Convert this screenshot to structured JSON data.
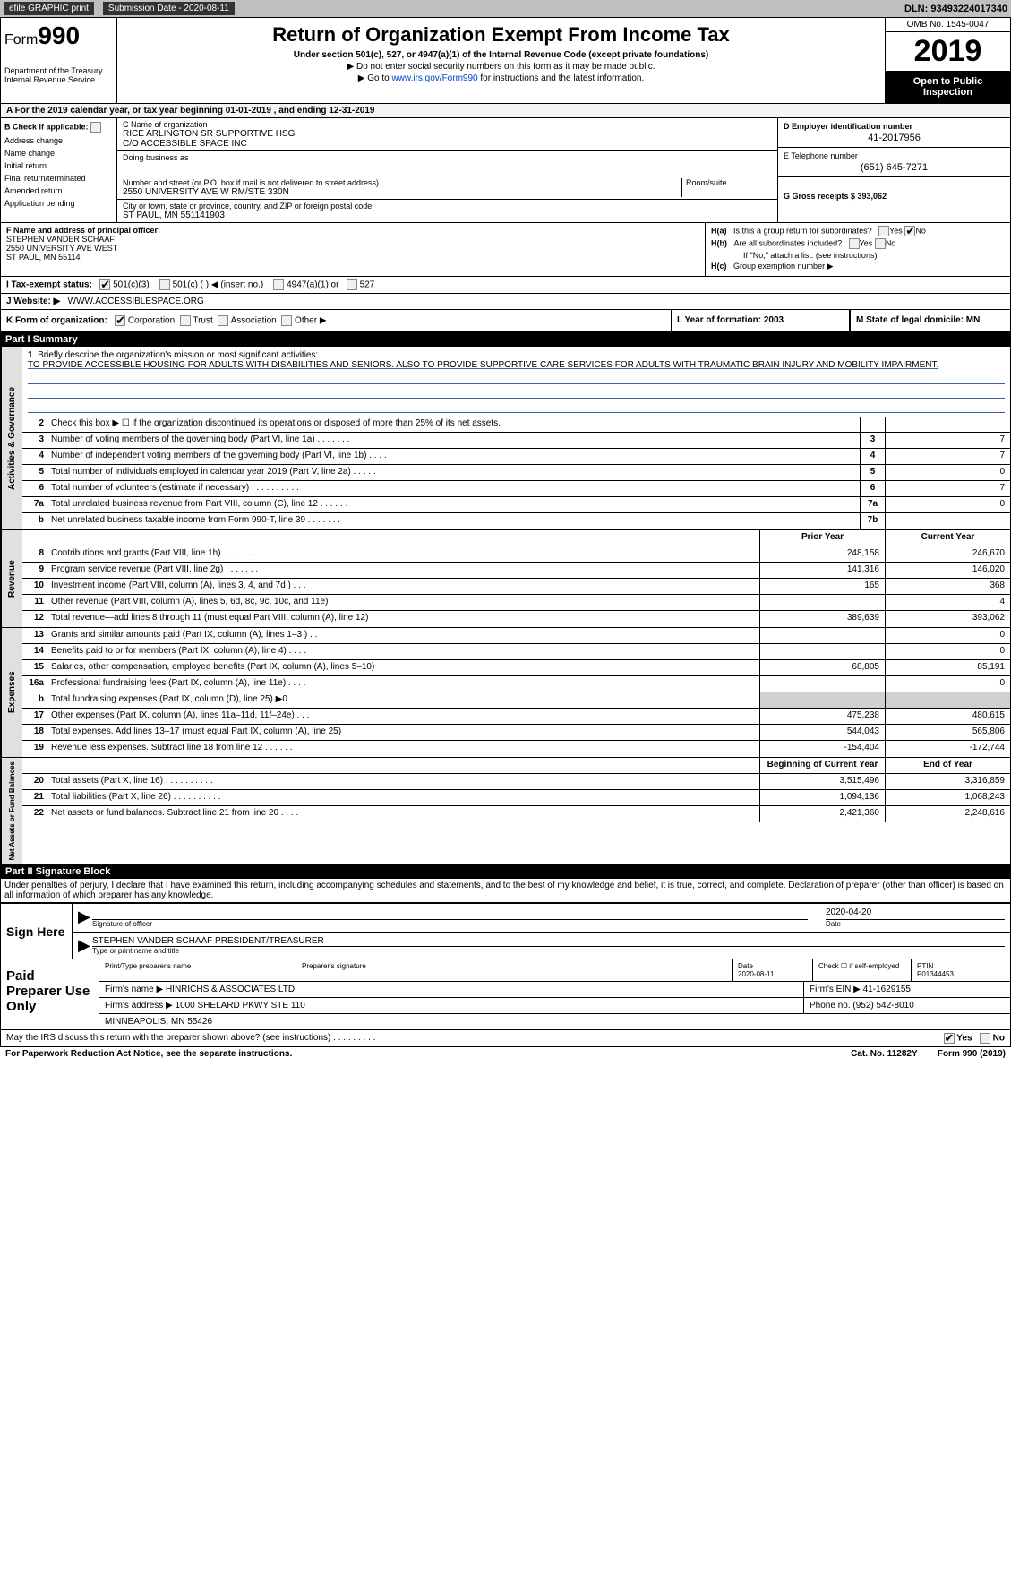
{
  "topbar": {
    "efile_label": "efile GRAPHIC print",
    "sub_label": "Submission Date - 2020-08-11",
    "dln_label": "DLN: 93493224017340"
  },
  "header": {
    "form_prefix": "Form",
    "form_num": "990",
    "dept": "Department of the Treasury\nInternal Revenue Service",
    "title": "Return of Organization Exempt From Income Tax",
    "subtitle": "Under section 501(c), 527, or 4947(a)(1) of the Internal Revenue Code (except private foundations)",
    "note1": "▶ Do not enter social security numbers on this form as it may be made public.",
    "note2_pre": "▶ Go to ",
    "note2_link": "www.irs.gov/Form990",
    "note2_post": " for instructions and the latest information.",
    "omb": "OMB No. 1545-0047",
    "year": "2019",
    "open": "Open to Public Inspection"
  },
  "rowA": {
    "text": "A   For the 2019 calendar year, or tax year beginning 01-01-2019       , and ending 12-31-2019"
  },
  "colB": {
    "title": "B Check if applicable:",
    "items": [
      "Address change",
      "Name change",
      "Initial return",
      "Final return/terminated",
      "Amended return",
      "Application pending"
    ]
  },
  "colC": {
    "name_lbl": "C Name of organization",
    "name": "RICE ARLINGTON SR SUPPORTIVE HSG",
    "co": "C/O ACCESSIBLE SPACE INC",
    "dba_lbl": "Doing business as",
    "dba": "",
    "street_lbl": "Number and street (or P.O. box if mail is not delivered to street address)",
    "street": "2550 UNIVERSITY AVE W RM/STE 330N",
    "room_lbl": "Room/suite",
    "city_lbl": "City or town, state or province, country, and ZIP or foreign postal code",
    "city": "ST PAUL, MN  551141903"
  },
  "colD": {
    "ein_lbl": "D Employer identification number",
    "ein": "41-2017956",
    "tel_lbl": "E Telephone number",
    "tel": "(651) 645-7271",
    "gross_lbl": "G Gross receipts $ 393,062"
  },
  "rowF": {
    "lbl": "F  Name and address of principal officer:",
    "name": "STEPHEN VANDER SCHAAF",
    "street": "2550 UNIVERSITY AVE WEST",
    "city": "ST PAUL, MN  55114"
  },
  "rowH": {
    "ha_lbl": "H(a)",
    "ha_txt": "Is this a group return for subordinates?",
    "yes": "Yes",
    "no": "No",
    "hb_lbl": "H(b)",
    "hb_txt": "Are all subordinates included?",
    "hb_note": "If \"No,\" attach a list. (see instructions)",
    "hc_lbl": "H(c)",
    "hc_txt": "Group exemption number ▶"
  },
  "rowI": {
    "lbl": "I     Tax-exempt status:",
    "o501c3": "501(c)(3)",
    "o501c": "501(c) (   ) ◀ (insert no.)",
    "o4947": "4947(a)(1) or",
    "o527": "527"
  },
  "rowJ": {
    "lbl": "J    Website: ▶",
    "val": "WWW.ACCESSIBLESPACE.ORG"
  },
  "rowK": {
    "lbl": "K Form of organization:",
    "corp": "Corporation",
    "trust": "Trust",
    "assoc": "Association",
    "other": "Other ▶"
  },
  "rowLM": {
    "l_lbl": "L Year of formation: 2003",
    "m_lbl": "M State of legal domicile: MN"
  },
  "part1": {
    "hdr": "Part I      Summary"
  },
  "mission": {
    "n": "1",
    "lbl": "Briefly describe the organization's mission or most significant activities:",
    "txt": "TO PROVIDE ACCESSIBLE HOUSING FOR ADULTS WITH DISABILITIES AND SENIORS. ALSO TO PROVIDE SUPPORTIVE CARE SERVICES FOR ADULTS WITH TRAUMATIC BRAIN INJURY AND MOBILITY IMPAIRMENT."
  },
  "gov_rows": [
    {
      "n": "2",
      "d": "Check this box ▶ ☐ if the organization discontinued its operations or disposed of more than 25% of its net assets.",
      "bx": "",
      "v": ""
    },
    {
      "n": "3",
      "d": "Number of voting members of the governing body (Part VI, line 1a)   .      .      .      .      .      .      .",
      "bx": "3",
      "v": "7"
    },
    {
      "n": "4",
      "d": "Number of independent voting members of the governing body (Part VI, line 1b)   .      .      .      .",
      "bx": "4",
      "v": "7"
    },
    {
      "n": "5",
      "d": "Total number of individuals employed in calendar year 2019 (Part V, line 2a)   .      .      .      .      .",
      "bx": "5",
      "v": "0"
    },
    {
      "n": "6",
      "d": "Total number of volunteers (estimate if necessary)   .      .      .      .      .      .      .      .      .      .",
      "bx": "6",
      "v": "7"
    },
    {
      "n": "7a",
      "d": "Total unrelated business revenue from Part VIII, column (C), line 12   .      .      .      .      .      .",
      "bx": "7a",
      "v": "0"
    },
    {
      "n": "b",
      "d": "Net unrelated business taxable income from Form 990-T, line 39   .      .      .      .      .      .      .",
      "bx": "7b",
      "v": ""
    }
  ],
  "pycy_hdr": {
    "py": "Prior Year",
    "cy": "Current Year"
  },
  "rev_rows": [
    {
      "n": "8",
      "d": "Contributions and grants (Part VIII, line 1h)   .      .      .      .      .      .      .",
      "py": "248,158",
      "cy": "246,670"
    },
    {
      "n": "9",
      "d": "Program service revenue (Part VIII, line 2g)   .      .      .      .      .      .      .",
      "py": "141,316",
      "cy": "146,020"
    },
    {
      "n": "10",
      "d": "Investment income (Part VIII, column (A), lines 3, 4, and 7d )   .      .      .",
      "py": "165",
      "cy": "368"
    },
    {
      "n": "11",
      "d": "Other revenue (Part VIII, column (A), lines 5, 6d, 8c, 9c, 10c, and 11e)",
      "py": "",
      "cy": "4"
    },
    {
      "n": "12",
      "d": "Total revenue—add lines 8 through 11 (must equal Part VIII, column (A), line 12)",
      "py": "389,639",
      "cy": "393,062"
    }
  ],
  "exp_rows": [
    {
      "n": "13",
      "d": "Grants and similar amounts paid (Part IX, column (A), lines 1–3 )   .      .      .",
      "py": "",
      "cy": "0"
    },
    {
      "n": "14",
      "d": "Benefits paid to or for members (Part IX, column (A), line 4)   .      .      .      .",
      "py": "",
      "cy": "0"
    },
    {
      "n": "15",
      "d": "Salaries, other compensation, employee benefits (Part IX, column (A), lines 5–10)",
      "py": "68,805",
      "cy": "85,191"
    },
    {
      "n": "16a",
      "d": "Professional fundraising fees (Part IX, column (A), line 11e)   .      .      .      .",
      "py": "",
      "cy": "0"
    },
    {
      "n": "b",
      "d": "Total fundraising expenses (Part IX, column (D), line 25) ▶0",
      "py": "shade",
      "cy": "shade"
    },
    {
      "n": "17",
      "d": "Other expenses (Part IX, column (A), lines 11a–11d, 11f–24e)   .      .      .",
      "py": "475,238",
      "cy": "480,615"
    },
    {
      "n": "18",
      "d": "Total expenses. Add lines 13–17 (must equal Part IX, column (A), line 25)",
      "py": "544,043",
      "cy": "565,806"
    },
    {
      "n": "19",
      "d": "Revenue less expenses. Subtract line 18 from line 12   .      .      .      .      .      .",
      "py": "-154,404",
      "cy": "-172,744"
    }
  ],
  "na_hdr": {
    "py": "Beginning of Current Year",
    "cy": "End of Year"
  },
  "na_rows": [
    {
      "n": "20",
      "d": "Total assets (Part X, line 16)   .      .      .      .      .      .      .      .      .      .",
      "py": "3,515,496",
      "cy": "3,316,859"
    },
    {
      "n": "21",
      "d": "Total liabilities (Part X, line 26)   .      .      .      .      .      .      .      .      .      .",
      "py": "1,094,136",
      "cy": "1,068,243"
    },
    {
      "n": "22",
      "d": "Net assets or fund balances. Subtract line 21 from line 20   .      .      .      .",
      "py": "2,421,360",
      "cy": "2,248,616"
    }
  ],
  "side_labels": {
    "gov": "Activities & Governance",
    "rev": "Revenue",
    "exp": "Expenses",
    "na": "Net Assets or Fund Balances"
  },
  "part2": {
    "hdr": "Part II      Signature Block"
  },
  "perjury": "Under penalties of perjury, I declare that I have examined this return, including accompanying schedules and statements, and to the best of my knowledge and belief, it is true, correct, and complete. Declaration of preparer (other than officer) is based on all information of which preparer has any knowledge.",
  "sign": {
    "lbl": "Sign Here",
    "sig_lbl": "Signature of officer",
    "date": "2020-04-20",
    "date_lbl": "Date",
    "name": "STEPHEN VANDER SCHAAF  PRESIDENT/TREASURER",
    "name_lbl": "Type or print name and title"
  },
  "prep": {
    "lbl": "Paid Preparer Use Only",
    "r1": {
      "c1": "Print/Type preparer's name",
      "c2": "Preparer's signature",
      "c3": "Date\n2020-08-11",
      "c4_lbl": "Check ☐ if self-employed",
      "c5_lbl": "PTIN",
      "c5": "P01344453"
    },
    "r2": {
      "c1": "Firm's name    ▶ HINRICHS & ASSOCIATES LTD",
      "c2": "Firm's EIN ▶ 41-1629155"
    },
    "r3": {
      "c1": "Firm's address ▶ 1000 SHELARD PKWY STE 110",
      "c2": "Phone no. (952) 542-8010"
    },
    "r4": {
      "c1": "                          MINNEAPOLIS, MN  55426"
    }
  },
  "discuss": {
    "txt": "May the IRS discuss this return with the preparer shown above? (see instructions)   .      .      .      .      .      .      .      .      .",
    "yes": "Yes",
    "no": "No"
  },
  "footer": {
    "left": "For Paperwork Reduction Act Notice, see the separate instructions.",
    "mid": "Cat. No. 11282Y",
    "right": "Form 990 (2019)"
  }
}
